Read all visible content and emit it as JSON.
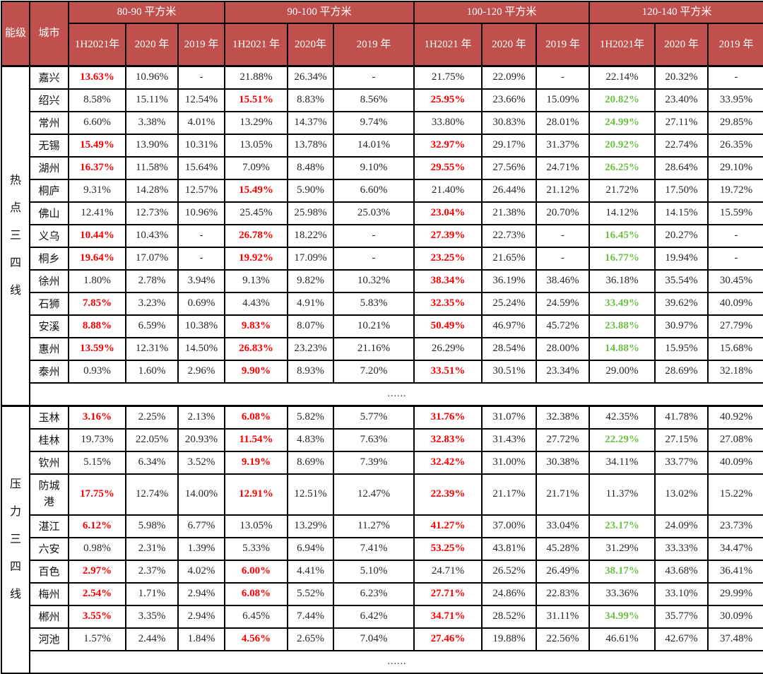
{
  "table": {
    "corner_headers": [
      "能级",
      "城市"
    ],
    "colors": {
      "header_bg": "#C0504D",
      "header_text": "#FFFFFF",
      "highlight_red": "#FE0000",
      "highlight_green": "#6FBF44",
      "body_text": "#262626",
      "border": "#000000"
    },
    "area_groups": [
      {
        "label": "80-90 平方米",
        "sub": [
          "1H2021年",
          "2020 年",
          "2019 年"
        ]
      },
      {
        "label": "90-100 平方米",
        "sub": [
          "1H2021 年",
          "2020年",
          "2019 年"
        ]
      },
      {
        "label": "100-120 平方米",
        "sub": [
          "1H2021 年",
          "2020 年",
          "2019 年"
        ]
      },
      {
        "label": "120-140 平方米",
        "sub": [
          "1H2021年",
          "2020 年",
          "2019 年"
        ]
      }
    ],
    "groups": [
      {
        "tier": "热点三四线",
        "ellipsis": "......",
        "rows": [
          {
            "city": "嘉兴",
            "values": [
              "13.63%",
              "10.96%",
              "-",
              "21.88%",
              "26.34%",
              "-",
              "21.75%",
              "22.09%",
              "-",
              "22.14%",
              "20.32%",
              "-"
            ],
            "colors": [
              "r",
              "k",
              "k",
              "k",
              "k",
              "k",
              "k",
              "k",
              "k",
              "k",
              "k",
              "k"
            ]
          },
          {
            "city": "绍兴",
            "values": [
              "8.58%",
              "15.11%",
              "12.54%",
              "15.51%",
              "8.83%",
              "8.56%",
              "25.95%",
              "23.66%",
              "15.09%",
              "20.82%",
              "23.40%",
              "33.95%"
            ],
            "colors": [
              "k",
              "k",
              "k",
              "r",
              "k",
              "k",
              "r",
              "k",
              "k",
              "g",
              "k",
              "k"
            ]
          },
          {
            "city": "常州",
            "values": [
              "6.60%",
              "3.38%",
              "4.01%",
              "13.29%",
              "14.37%",
              "9.74%",
              "33.80%",
              "30.83%",
              "28.01%",
              "24.99%",
              "27.11%",
              "29.85%"
            ],
            "colors": [
              "k",
              "k",
              "k",
              "k",
              "k",
              "k",
              "k",
              "k",
              "k",
              "g",
              "k",
              "k"
            ]
          },
          {
            "city": "无锡",
            "values": [
              "15.49%",
              "13.90%",
              "10.31%",
              "13.05%",
              "13.78%",
              "14.01%",
              "32.97%",
              "29.17%",
              "31.37%",
              "20.92%",
              "22.74%",
              "26.35%"
            ],
            "colors": [
              "r",
              "k",
              "k",
              "k",
              "k",
              "k",
              "r",
              "k",
              "k",
              "g",
              "k",
              "k"
            ]
          },
          {
            "city": "湖州",
            "values": [
              "16.37%",
              "11.58%",
              "15.64%",
              "7.09%",
              "8.48%",
              "9.10%",
              "29.55%",
              "27.56%",
              "24.71%",
              "26.25%",
              "28.64%",
              "29.10%"
            ],
            "colors": [
              "r",
              "k",
              "k",
              "k",
              "k",
              "k",
              "r",
              "k",
              "k",
              "g",
              "k",
              "k"
            ]
          },
          {
            "city": "桐庐",
            "values": [
              "9.31%",
              "14.28%",
              "12.57%",
              "15.49%",
              "5.90%",
              "6.60%",
              "21.40%",
              "26.44%",
              "21.12%",
              "21.72%",
              "17.50%",
              "19.72%"
            ],
            "colors": [
              "k",
              "k",
              "k",
              "r",
              "k",
              "k",
              "k",
              "k",
              "k",
              "k",
              "k",
              "k"
            ]
          },
          {
            "city": "佛山",
            "values": [
              "12.41%",
              "12.73%",
              "10.96%",
              "25.45%",
              "25.98%",
              "25.03%",
              "23.04%",
              "21.38%",
              "20.70%",
              "14.12%",
              "14.15%",
              "15.59%"
            ],
            "colors": [
              "k",
              "k",
              "k",
              "k",
              "k",
              "k",
              "r",
              "k",
              "k",
              "k",
              "k",
              "k"
            ]
          },
          {
            "city": "义乌",
            "values": [
              "10.44%",
              "10.43%",
              "-",
              "26.78%",
              "18.22%",
              "-",
              "27.39%",
              "22.73%",
              "-",
              "16.45%",
              "20.27%",
              "-"
            ],
            "colors": [
              "r",
              "k",
              "k",
              "r",
              "k",
              "k",
              "r",
              "k",
              "k",
              "g",
              "k",
              "k"
            ]
          },
          {
            "city": "桐乡",
            "values": [
              "19.64%",
              "17.07%",
              "-",
              "19.92%",
              "17.09%",
              "-",
              "23.25%",
              "21.65%",
              "-",
              "16.77%",
              "19.94%",
              "-"
            ],
            "colors": [
              "r",
              "k",
              "k",
              "r",
              "k",
              "k",
              "r",
              "k",
              "k",
              "g",
              "k",
              "k"
            ]
          },
          {
            "city": "徐州",
            "values": [
              "1.80%",
              "2.78%",
              "3.94%",
              "9.13%",
              "9.82%",
              "10.32%",
              "38.34%",
              "36.19%",
              "38.46%",
              "36.18%",
              "35.54%",
              "30.45%"
            ],
            "colors": [
              "k",
              "k",
              "k",
              "k",
              "k",
              "k",
              "r",
              "k",
              "k",
              "k",
              "k",
              "k"
            ]
          },
          {
            "city": "石狮",
            "values": [
              "7.85%",
              "3.23%",
              "0.69%",
              "4.43%",
              "4.91%",
              "5.83%",
              "32.35%",
              "25.24%",
              "24.59%",
              "33.49%",
              "39.62%",
              "40.09%"
            ],
            "colors": [
              "r",
              "k",
              "k",
              "k",
              "k",
              "k",
              "r",
              "k",
              "k",
              "g",
              "k",
              "k"
            ]
          },
          {
            "city": "安溪",
            "values": [
              "8.88%",
              "6.59%",
              "10.38%",
              "9.83%",
              "8.07%",
              "10.21%",
              "50.49%",
              "46.97%",
              "45.72%",
              "23.88%",
              "30.97%",
              "27.79%"
            ],
            "colors": [
              "r",
              "k",
              "k",
              "r",
              "k",
              "k",
              "r",
              "k",
              "k",
              "g",
              "k",
              "k"
            ]
          },
          {
            "city": "惠州",
            "values": [
              "13.59%",
              "12.31%",
              "14.50%",
              "26.83%",
              "23.23%",
              "21.16%",
              "26.29%",
              "28.54%",
              "28.00%",
              "14.88%",
              "15.95%",
              "15.68%"
            ],
            "colors": [
              "r",
              "k",
              "k",
              "r",
              "k",
              "k",
              "k",
              "k",
              "k",
              "g",
              "k",
              "k"
            ]
          },
          {
            "city": "泰州",
            "values": [
              "0.93%",
              "1.60%",
              "2.96%",
              "9.90%",
              "8.93%",
              "7.20%",
              "33.51%",
              "30.51%",
              "23.34%",
              "29.00%",
              "28.69%",
              "32.18%"
            ],
            "colors": [
              "k",
              "k",
              "k",
              "r",
              "k",
              "k",
              "r",
              "k",
              "k",
              "k",
              "k",
              "k"
            ]
          }
        ]
      },
      {
        "tier": "压力三四线",
        "ellipsis": "......",
        "rows": [
          {
            "city": "玉林",
            "values": [
              "3.16%",
              "2.25%",
              "2.13%",
              "6.08%",
              "5.82%",
              "5.77%",
              "31.76%",
              "31.07%",
              "32.38%",
              "42.35%",
              "41.78%",
              "40.92%"
            ],
            "colors": [
              "r",
              "k",
              "k",
              "r",
              "k",
              "k",
              "r",
              "k",
              "k",
              "k",
              "k",
              "k"
            ]
          },
          {
            "city": "桂林",
            "values": [
              "19.73%",
              "22.05%",
              "20.93%",
              "11.54%",
              "4.83%",
              "7.63%",
              "32.83%",
              "31.43%",
              "27.72%",
              "22.29%",
              "27.15%",
              "27.08%"
            ],
            "colors": [
              "k",
              "k",
              "k",
              "r",
              "k",
              "k",
              "r",
              "k",
              "k",
              "g",
              "k",
              "k"
            ]
          },
          {
            "city": "钦州",
            "values": [
              "5.15%",
              "6.34%",
              "3.52%",
              "9.19%",
              "8.69%",
              "7.39%",
              "32.42%",
              "31.00%",
              "30.38%",
              "34.11%",
              "33.77%",
              "40.09%"
            ],
            "colors": [
              "k",
              "k",
              "k",
              "r",
              "k",
              "k",
              "r",
              "k",
              "k",
              "k",
              "k",
              "k"
            ]
          },
          {
            "city": "防城港",
            "tall": true,
            "values": [
              "17.75%",
              "12.74%",
              "14.00%",
              "12.91%",
              "12.51%",
              "12.47%",
              "22.39%",
              "21.17%",
              "21.71%",
              "11.37%",
              "13.02%",
              "15.22%"
            ],
            "colors": [
              "r",
              "k",
              "k",
              "r",
              "k",
              "k",
              "r",
              "k",
              "k",
              "k",
              "k",
              "k"
            ]
          },
          {
            "city": "湛江",
            "values": [
              "6.12%",
              "5.98%",
              "6.77%",
              "13.05%",
              "13.29%",
              "11.27%",
              "41.27%",
              "37.00%",
              "33.04%",
              "23.17%",
              "24.09%",
              "23.73%"
            ],
            "colors": [
              "r",
              "k",
              "k",
              "k",
              "k",
              "k",
              "r",
              "k",
              "k",
              "g",
              "k",
              "k"
            ]
          },
          {
            "city": "六安",
            "values": [
              "0.98%",
              "2.31%",
              "1.39%",
              "5.33%",
              "6.94%",
              "7.41%",
              "53.25%",
              "43.81%",
              "45.28%",
              "31.29%",
              "33.33%",
              "34.47%"
            ],
            "colors": [
              "k",
              "k",
              "k",
              "k",
              "k",
              "k",
              "r",
              "k",
              "k",
              "k",
              "k",
              "k"
            ]
          },
          {
            "city": "百色",
            "values": [
              "2.97%",
              "2.37%",
              "4.02%",
              "6.00%",
              "4.41%",
              "5.10%",
              "24.71%",
              "26.52%",
              "26.49%",
              "38.17%",
              "43.68%",
              "36.41%"
            ],
            "colors": [
              "r",
              "k",
              "k",
              "r",
              "k",
              "k",
              "k",
              "k",
              "k",
              "g",
              "k",
              "k"
            ]
          },
          {
            "city": "梅州",
            "values": [
              "2.54%",
              "1.71%",
              "2.94%",
              "6.08%",
              "5.52%",
              "6.23%",
              "27.71%",
              "24.86%",
              "22.83%",
              "33.36%",
              "33.10%",
              "29.99%"
            ],
            "colors": [
              "r",
              "k",
              "k",
              "r",
              "k",
              "k",
              "r",
              "k",
              "k",
              "k",
              "k",
              "k"
            ]
          },
          {
            "city": "郴州",
            "values": [
              "3.55%",
              "3.35%",
              "2.94%",
              "6.45%",
              "7.44%",
              "6.42%",
              "34.71%",
              "28.52%",
              "31.11%",
              "34.99%",
              "35.77%",
              "30.09%"
            ],
            "colors": [
              "r",
              "k",
              "k",
              "k",
              "k",
              "k",
              "r",
              "k",
              "k",
              "g",
              "k",
              "k"
            ]
          },
          {
            "city": "河池",
            "values": [
              "1.57%",
              "2.44%",
              "1.84%",
              "4.56%",
              "2.65%",
              "7.04%",
              "27.46%",
              "19.88%",
              "22.56%",
              "46.61%",
              "42.67%",
              "37.48%"
            ],
            "colors": [
              "k",
              "k",
              "k",
              "r",
              "k",
              "k",
              "r",
              "k",
              "k",
              "k",
              "k",
              "k"
            ]
          }
        ]
      }
    ]
  }
}
